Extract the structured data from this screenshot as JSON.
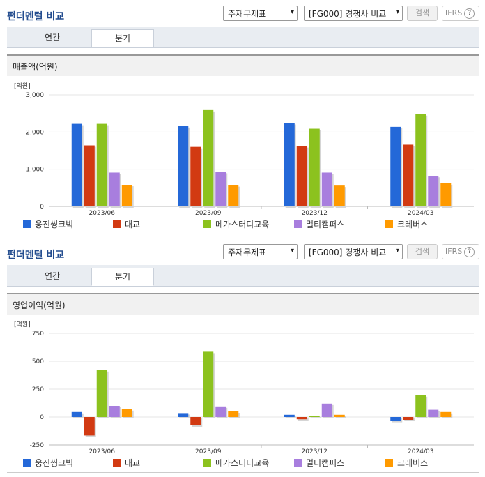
{
  "sections": [
    {
      "title": "펀더멘털 비교",
      "select1": "주재무제표",
      "select2": "[FG000] 경쟁사 비교",
      "search_button": "검색",
      "ifrs_label": "IFRS",
      "ifrs_help": "?",
      "tabs": [
        "연간",
        "분기"
      ],
      "active_tab": 1,
      "chart_title": "매출액(억원)"
    },
    {
      "title": "펀더멘털 비교",
      "select1": "주재무제표",
      "select2": "[FG000] 경쟁사 비교",
      "search_button": "검색",
      "ifrs_label": "IFRS",
      "ifrs_help": "?",
      "tabs": [
        "연간",
        "분기"
      ],
      "active_tab": 1,
      "chart_title": "영업이익(억원)"
    }
  ],
  "chart_data": [
    {
      "type": "bar",
      "title": "매출액(억원)",
      "unit_label": "[억원]",
      "categories": [
        "2023/06",
        "2023/09",
        "2023/12",
        "2024/03"
      ],
      "ylim": [
        0,
        3000
      ],
      "yticks": [
        0,
        1000,
        2000,
        3000
      ],
      "ytick_labels": [
        "0",
        "1,000",
        "2,000",
        "3,000"
      ],
      "grid": true,
      "series": [
        {
          "name": "웅진씽크빅",
          "color": "#2468d8",
          "values": [
            2220,
            2160,
            2240,
            2140
          ]
        },
        {
          "name": "대교",
          "color": "#d23a12",
          "values": [
            1640,
            1600,
            1620,
            1660
          ]
        },
        {
          "name": "메가스터디교육",
          "color": "#8cc21e",
          "values": [
            2220,
            2590,
            2090,
            2480
          ]
        },
        {
          "name": "멀티캠퍼스",
          "color": "#a87ede",
          "values": [
            910,
            930,
            910,
            820
          ]
        },
        {
          "name": "크레버스",
          "color": "#ff9a00",
          "values": [
            580,
            570,
            560,
            620
          ]
        }
      ]
    },
    {
      "type": "bar",
      "title": "영업이익(억원)",
      "unit_label": "[억원]",
      "categories": [
        "2023/06",
        "2023/09",
        "2023/12",
        "2024/03"
      ],
      "ylim": [
        -250,
        750
      ],
      "yticks": [
        -250,
        0,
        250,
        500,
        750
      ],
      "ytick_labels": [
        "-250",
        "0",
        "250",
        "500",
        "750"
      ],
      "grid": true,
      "series": [
        {
          "name": "웅진씽크빅",
          "color": "#2468d8",
          "values": [
            45,
            35,
            20,
            -35
          ]
        },
        {
          "name": "대교",
          "color": "#d23a12",
          "values": [
            -165,
            -75,
            -20,
            -25
          ]
        },
        {
          "name": "메가스터디교육",
          "color": "#8cc21e",
          "values": [
            420,
            585,
            10,
            195
          ]
        },
        {
          "name": "멀티캠퍼스",
          "color": "#a87ede",
          "values": [
            100,
            95,
            120,
            65
          ]
        },
        {
          "name": "크레버스",
          "color": "#ff9a00",
          "values": [
            70,
            50,
            20,
            45
          ]
        }
      ]
    }
  ]
}
